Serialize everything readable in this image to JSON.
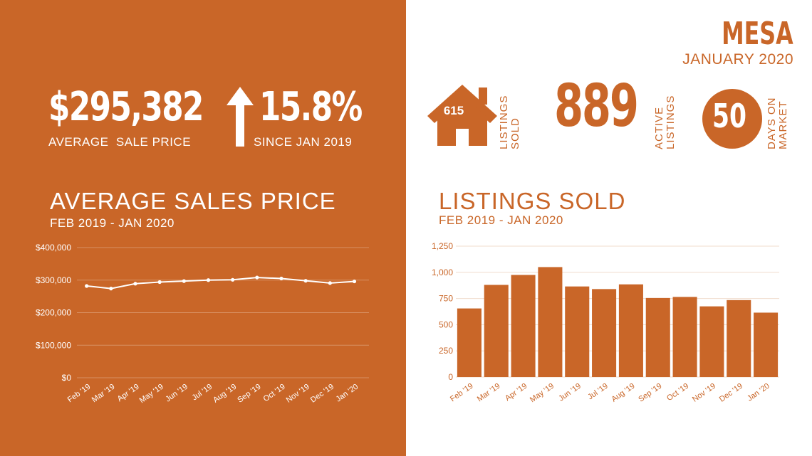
{
  "left": {
    "headline_value": "$295,382",
    "headline_label": "AVERAGE  SALE PRICE",
    "change_value": "15.8%",
    "change_label": "SINCE JAN 2019",
    "chart_title": "AVERAGE SALES PRICE",
    "chart_subtitle": "FEB 2019 - JAN 2020"
  },
  "right": {
    "city": "MESA",
    "month": "JANUARY 2020",
    "listings_sold_value": "615",
    "listings_sold_label": "LISTINGS SOLD",
    "active_value": "889",
    "active_label": "ACTIVE LISTINGS",
    "dom_value": "50",
    "dom_label": "DAYS ON MARKET",
    "chart_title": "LISTINGS SOLD",
    "chart_subtitle": "FEB 2019 - JAN 2020"
  },
  "colors": {
    "accent": "#c96628",
    "white": "#ffffff"
  },
  "icons": {
    "house": "house-icon",
    "arrow": "arrow-up-icon"
  },
  "chart_data": [
    {
      "type": "line",
      "title": "",
      "categories": [
        "Feb '19",
        "Mar '19",
        "Apr '19",
        "May '19",
        "Jun '19",
        "Jul '19",
        "Aug '19",
        "Sep '19",
        "Oct '19",
        "Nov '19",
        "Dec '19",
        "Jan '20"
      ],
      "series": [
        {
          "values": [
            282000,
            274000,
            289000,
            294000,
            297000,
            300000,
            301000,
            308000,
            305000,
            298000,
            291000,
            296000
          ]
        }
      ],
      "yticks": [
        "$0",
        "$100,000",
        "$200,000",
        "$300,000",
        "$400,000"
      ],
      "ylim": [
        0,
        400000
      ],
      "grid": true
    },
    {
      "type": "bar",
      "title": "",
      "categories": [
        "Feb '19",
        "Mar '19",
        "Apr '19",
        "May '19",
        "Jun '19",
        "Jul '19",
        "Aug '19",
        "Sep '19",
        "Oct '19",
        "Nov '19",
        "Dec '19",
        "Jan '20"
      ],
      "values": [
        655,
        880,
        975,
        1050,
        865,
        840,
        885,
        755,
        765,
        675,
        735,
        615
      ],
      "yticks": [
        "0",
        "250",
        "500",
        "750",
        "1,000",
        "1,250"
      ],
      "ylim": [
        0,
        1250
      ],
      "grid": true
    }
  ]
}
